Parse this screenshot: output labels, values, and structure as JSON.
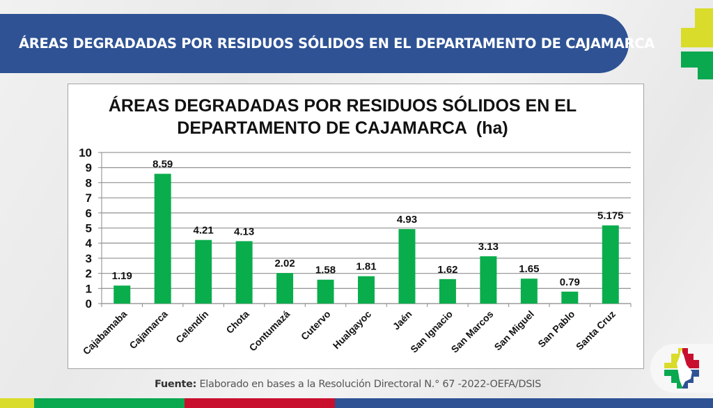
{
  "header": {
    "title": "ÁREAS DEGRADADAS POR RESIDUOS SÓLIDOS EN EL DEPARTAMENTO DE CAJAMARCA"
  },
  "colors": {
    "banner": "#2e5294",
    "bar": "#0aad4c",
    "yellow": "#d9dc2a",
    "green": "#0aa84f",
    "red": "#c8102e",
    "blue": "#2e5294"
  },
  "chart_data": {
    "type": "bar",
    "title_line1": "ÁREAS DEGRADADAS POR RESIDUOS SÓLIDOS EN EL",
    "title_line2": "DEPARTAMENTO DE CAJAMARCA  (ha)",
    "xlabel": "",
    "ylabel": "",
    "ylim": [
      0,
      10
    ],
    "yticks": [
      "0",
      "1",
      "2",
      "3",
      "4",
      "5",
      "6",
      "7",
      "8",
      "9",
      "10"
    ],
    "grid": true,
    "categories": [
      "Cajabamaba",
      "Cajamarca",
      "Celendín",
      "Chota",
      "Contumazá",
      "Cutervo",
      "Hualgayoc",
      "Jaén",
      "San Ignacio",
      "San Marcos",
      "San Miguel",
      "San Pablo",
      "Santa Cruz"
    ],
    "values": [
      1.19,
      8.59,
      4.21,
      4.13,
      2.02,
      1.58,
      1.81,
      4.93,
      1.62,
      3.13,
      1.65,
      0.79,
      5.175
    ],
    "labels": [
      "1.19",
      "8.59",
      "4.21",
      "4.13",
      "2.02",
      "1.58",
      "1.81",
      "4.93",
      "1.62",
      "3.13",
      "1.65",
      "0.79",
      "5.175"
    ]
  },
  "footer": {
    "source_label": "Fuente:",
    "source_text": " Elaborado en bases a la Resolución Directoral N.° 67 -2022-OEFA/DSIS"
  },
  "logos": {
    "top_right": "institution-logo-cross",
    "bottom_right": "cajamarca-region-logo"
  }
}
